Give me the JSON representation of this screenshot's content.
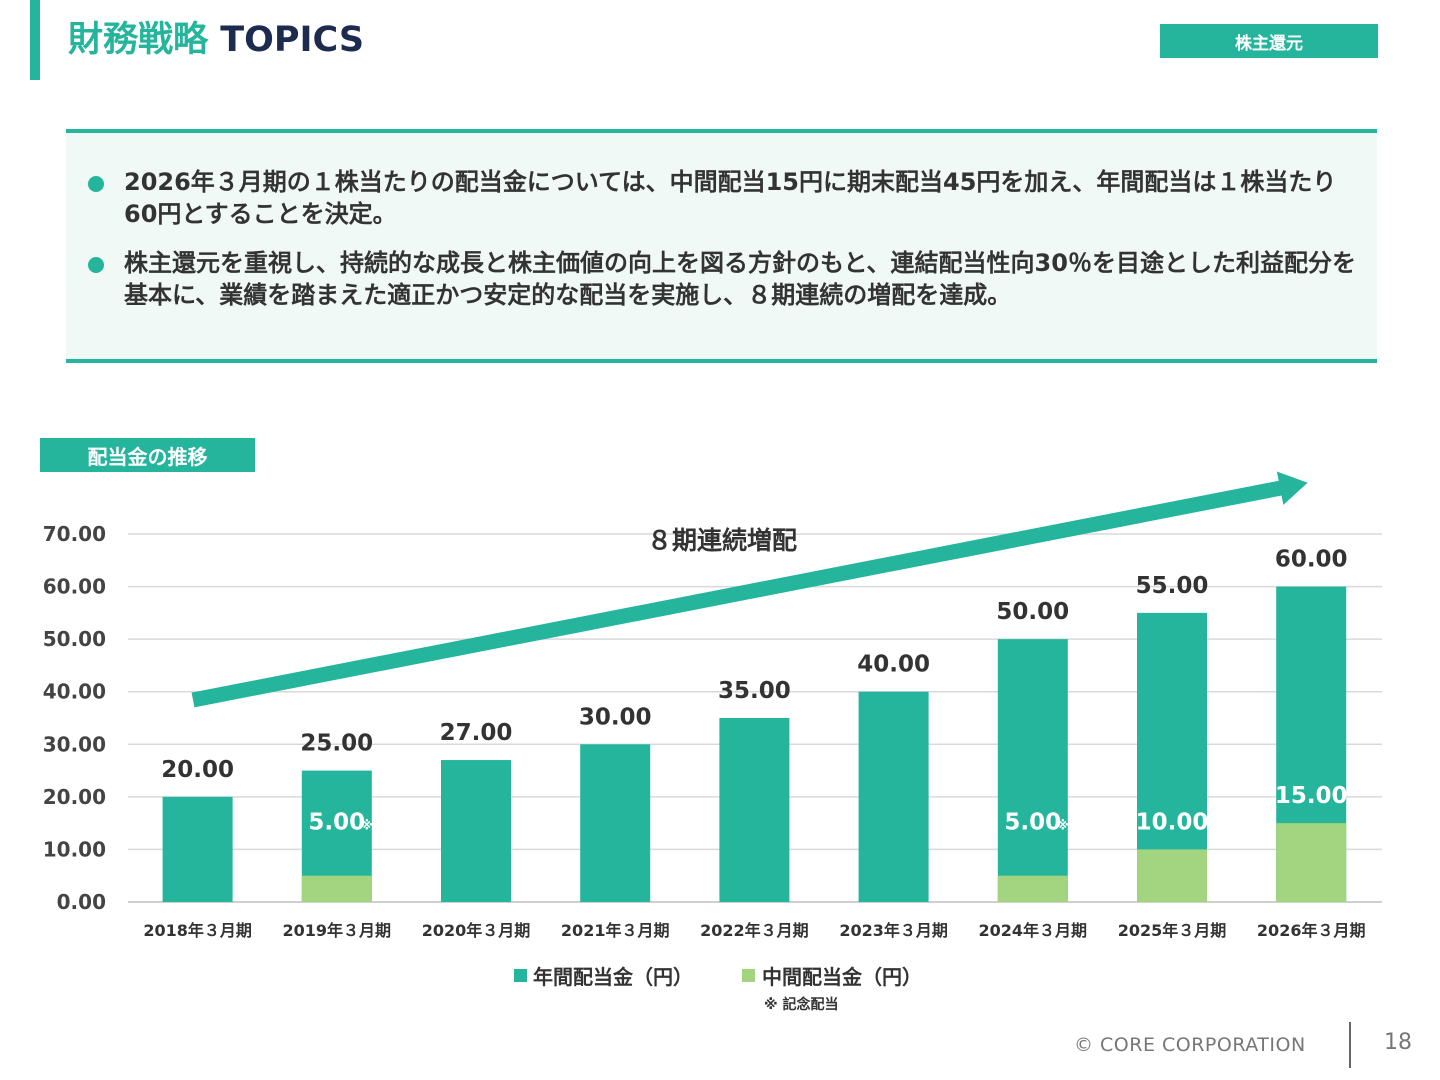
{
  "header": {
    "title_jp": "財務戦略",
    "title_en": "TOPICS",
    "section_tag": "株主還元"
  },
  "topics": [
    "2026年３月期の１株当たりの配当金については、中間配当15円に期末配当45円を加え、年間配当は１株当たり60円とすることを決定。",
    "株主還元を重視し、持続的な成長と株主価値の向上を図る方針のもと、連結配当性向30％を目途とした利益配分を基本に、業績を踏まえた適正かつ安定的な配当を実施し、８期連続の増配を達成。"
  ],
  "chart_tag": "配当金の推移",
  "chart_data": {
    "type": "bar",
    "categories": [
      "2018年３月期",
      "2019年３月期",
      "2020年３月期",
      "2021年３月期",
      "2022年３月期",
      "2023年３月期",
      "2024年３月期",
      "2025年３月期",
      "2026年３月期"
    ],
    "series": [
      {
        "name": "年間配当金（円）",
        "values": [
          20,
          25,
          27,
          30,
          35,
          40,
          50,
          55,
          60
        ],
        "color": "#24b59c"
      },
      {
        "name": "中間配当金（円）",
        "values": [
          null,
          5,
          null,
          null,
          null,
          null,
          5,
          10,
          15
        ],
        "color": "#a3d580"
      }
    ],
    "annual_labels": [
      "20.00",
      "25.00",
      "27.00",
      "30.00",
      "35.00",
      "40.00",
      "50.00",
      "55.00",
      "60.00"
    ],
    "interim_labels": [
      "",
      "5.00",
      "",
      "",
      "",
      "",
      "5.00",
      "10.00",
      "15.00"
    ],
    "interim_marks": [
      "",
      "※",
      "",
      "",
      "",
      "",
      "※",
      "",
      ""
    ],
    "yticks": [
      "0.00",
      "10.00",
      "20.00",
      "30.00",
      "40.00",
      "50.00",
      "60.00",
      "70.00"
    ],
    "ylim": [
      0,
      70
    ],
    "annotation": "８期連続増配",
    "grid": true,
    "legend_position": "bottom"
  },
  "note": "※ 記念配当",
  "footer": {
    "copyright": "© CORE CORPORATION",
    "page": "18"
  }
}
